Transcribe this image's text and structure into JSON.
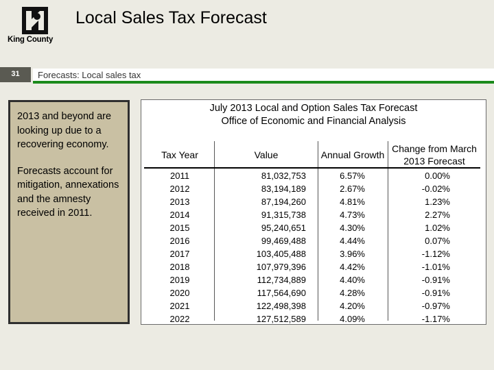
{
  "header": {
    "logo_text": "King County",
    "title": "Local Sales Tax Forecast"
  },
  "slide": {
    "number": "31",
    "subtitle": "Forecasts:  Local sales tax"
  },
  "notes": {
    "para1": "2013 and beyond are looking up due to a recovering economy.",
    "para2": "Forecasts account for mitigation, annexations and the amnesty received in 2011."
  },
  "table": {
    "title_line1": "July 2013 Local and Option Sales Tax Forecast",
    "title_line2": "Office of Economic and Financial Analysis",
    "columns": [
      "Tax Year",
      "Value",
      "Annual Growth",
      "Change from March 2013 Forecast"
    ],
    "rows": [
      {
        "year": "2011",
        "value": "81,032,753",
        "growth": "6.57%",
        "change": "0.00%"
      },
      {
        "year": "2012",
        "value": "83,194,189",
        "growth": "2.67%",
        "change": "-0.02%"
      },
      {
        "year": "2013",
        "value": "87,194,260",
        "growth": "4.81%",
        "change": "1.23%"
      },
      {
        "year": "2014",
        "value": "91,315,738",
        "growth": "4.73%",
        "change": "2.27%"
      },
      {
        "year": "2015",
        "value": "95,240,651",
        "growth": "4.30%",
        "change": "1.02%"
      },
      {
        "year": "2016",
        "value": "99,469,488",
        "growth": "4.44%",
        "change": "0.07%"
      },
      {
        "year": "2017",
        "value": "103,405,488",
        "growth": "3.96%",
        "change": "-1.12%"
      },
      {
        "year": "2018",
        "value": "107,979,396",
        "growth": "4.42%",
        "change": "-1.01%"
      },
      {
        "year": "2019",
        "value": "112,734,889",
        "growth": "4.40%",
        "change": "-0.91%"
      },
      {
        "year": "2020",
        "value": "117,564,690",
        "growth": "4.28%",
        "change": "-0.91%"
      },
      {
        "year": "2021",
        "value": "122,498,398",
        "growth": "4.20%",
        "change": "-0.97%"
      },
      {
        "year": "2022",
        "value": "127,512,589",
        "growth": "4.09%",
        "change": "-1.17%"
      }
    ]
  }
}
